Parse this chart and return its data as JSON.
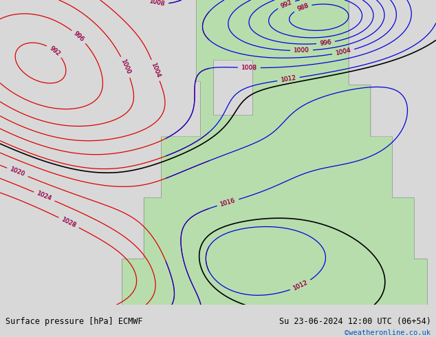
{
  "title_left": "Surface pressure [hPa] ECMWF",
  "title_right": "Su 23-06-2024 12:00 UTC (06+54)",
  "credit": "©weatheronline.co.uk",
  "ocean_color": "#c8d8e8",
  "land_color_europe": "#b8d8b0",
  "land_color_dark": "#a0c898",
  "blue_color": "#0000dd",
  "red_color": "#dd0000",
  "black_color": "#000000",
  "footer_bg": "#d8d8d8",
  "footer_fontsize": 8.5,
  "credit_fontsize": 7.5,
  "credit_color": "#0055bb",
  "label_fontsize": 6.5,
  "contour_lw": 0.9
}
